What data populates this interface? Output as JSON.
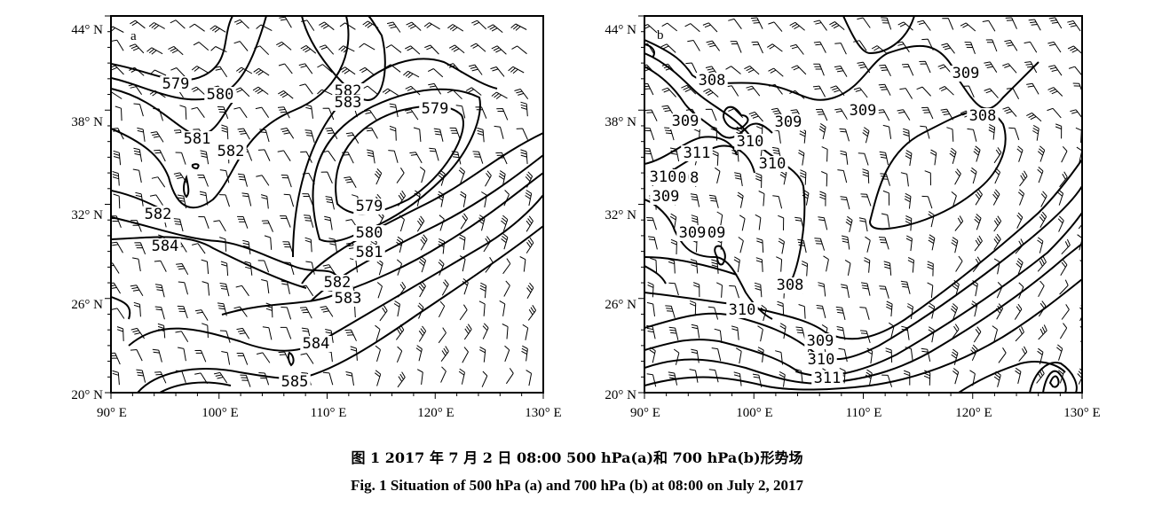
{
  "panels": [
    {
      "id": "a",
      "tag": "a",
      "x_ticks": [
        "90° E",
        "100° E",
        "110° E",
        "120° E",
        "130° E"
      ],
      "y_ticks": [
        "44° N",
        "38° N",
        "32° N",
        "26° N",
        "20° N"
      ],
      "contour_labels": [
        "579",
        "580",
        "581",
        "582",
        "582",
        "583",
        "582",
        "584",
        "579",
        "579",
        "580",
        "581",
        "582",
        "583",
        "584",
        "585"
      ]
    },
    {
      "id": "b",
      "tag": "b",
      "x_ticks": [
        "90° E",
        "100° E",
        "110° E",
        "120° E",
        "130° E"
      ],
      "y_ticks": [
        "44° N",
        "38° N",
        "32° N",
        "26° N",
        "20° N"
      ],
      "contour_labels": [
        "308",
        "309",
        "309",
        "310",
        "308",
        "309",
        "309",
        "311",
        "310",
        "308",
        "309",
        "310",
        "309",
        "308",
        "310",
        "309",
        "310",
        "311",
        "309",
        "310"
      ]
    }
  ],
  "caption": {
    "chinese": "图 1   2017 年 7 月 2 日 08:00 500 hPa(a)和 700 hPa(b)形势场",
    "english": "Fig. 1   Situation of 500 hPa (a) and 700 hPa (b) at 08:00 on July 2, 2017"
  }
}
